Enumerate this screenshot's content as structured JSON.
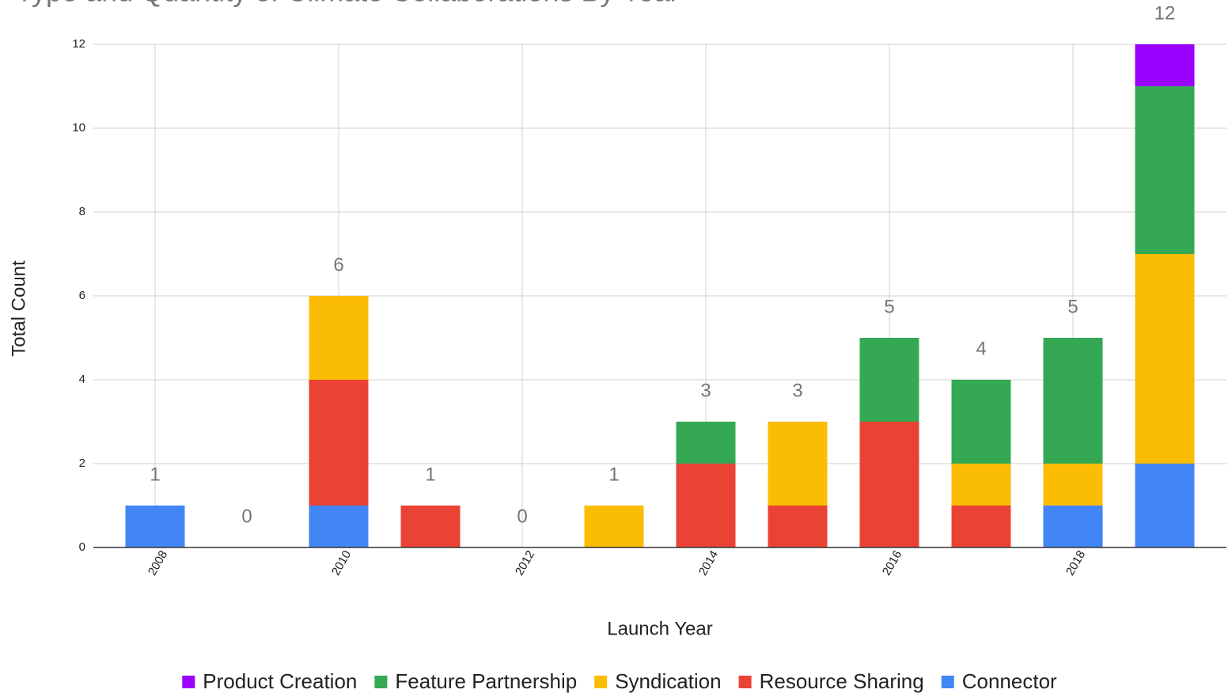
{
  "chart_data": {
    "type": "stacked_bar",
    "title": "Type and Quantity of Climate Collaborations By Year",
    "x_label": "Launch Year",
    "y_label": "Total Count",
    "categories": [
      "2008",
      null,
      "2010",
      null,
      "2012",
      null,
      "2014",
      null,
      "2016",
      null,
      "2018",
      null
    ],
    "series": [
      {
        "name": "Product Creation",
        "color": "#9900ff",
        "values": [
          0,
          0,
          0,
          0,
          0,
          0,
          0,
          0,
          0,
          0,
          0,
          1
        ]
      },
      {
        "name": "Feature Partnership",
        "color": "#34a853",
        "values": [
          0,
          0,
          0,
          0,
          0,
          0,
          1,
          0,
          2,
          2,
          3,
          4
        ]
      },
      {
        "name": "Syndication",
        "color": "#fbbc04",
        "values": [
          0,
          0,
          2,
          0,
          0,
          1,
          0,
          2,
          0,
          1,
          1,
          5
        ]
      },
      {
        "name": "Resource Sharing",
        "color": "#ea4335",
        "values": [
          0,
          0,
          3,
          1,
          0,
          0,
          2,
          1,
          3,
          1,
          0,
          0
        ]
      },
      {
        "name": "Connector",
        "color": "#4285f4",
        "values": [
          1,
          0,
          1,
          0,
          0,
          0,
          0,
          0,
          0,
          0,
          1,
          2
        ]
      }
    ],
    "totals": [
      1,
      0,
      6,
      1,
      0,
      1,
      3,
      3,
      5,
      4,
      5,
      12
    ],
    "ylim": [
      0,
      12
    ],
    "yticks": [
      0,
      2,
      4,
      6,
      8,
      10,
      12
    ],
    "grid": true,
    "legend": "bottom"
  }
}
